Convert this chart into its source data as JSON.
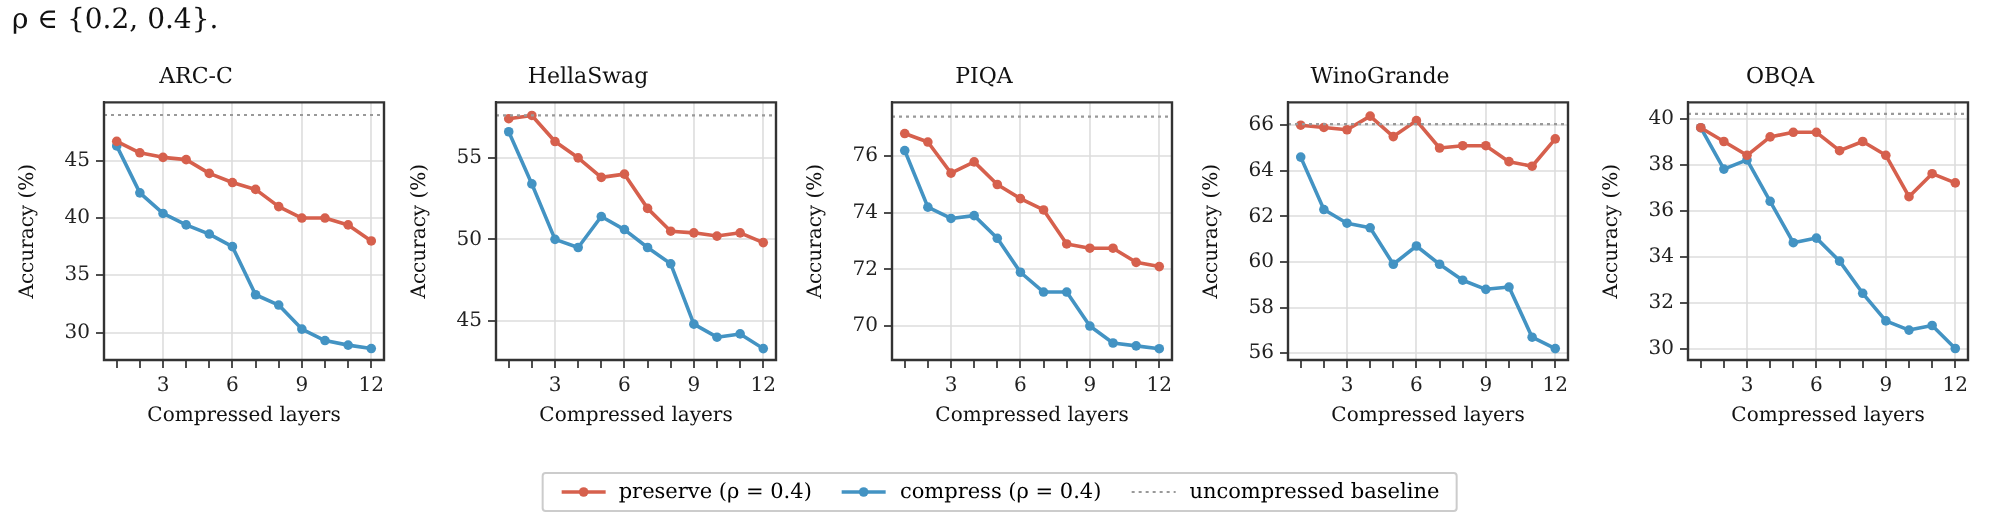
{
  "chart_data": [
    {
      "type": "line",
      "title": "ARC-C",
      "xlabel": "Compressed layers",
      "ylabel": "Accuracy (%)",
      "annotations": [
        "ρ ∈ {0.2, 0.4}."
      ],
      "x": [
        1,
        2,
        3,
        4,
        5,
        6,
        7,
        8,
        9,
        10,
        11,
        12
      ],
      "xlim": [
        0.45,
        12.55
      ],
      "xticks": [
        {
          "value": 1,
          "label": null
        },
        {
          "value": 2,
          "label": null
        },
        3,
        {
          "value": 4,
          "label": null
        },
        {
          "value": 5,
          "label": null
        },
        6,
        {
          "value": 7,
          "label": null
        },
        {
          "value": 8,
          "label": null
        },
        9,
        {
          "value": 10,
          "label": null
        },
        {
          "value": 11,
          "label": null
        },
        12
      ],
      "ylim": [
        27.6,
        50.1
      ],
      "yticks": [
        30,
        35,
        40,
        45
      ],
      "grid": true,
      "legend": "bottom",
      "marker": "circle",
      "line_style": "solid",
      "ref_lines": [
        {
          "axis": "y",
          "value": 49.0,
          "label": "uncompressed baseline",
          "color": "#999999",
          "line_style": "dotted"
        }
      ],
      "series": [
        {
          "name": "preserve (ρ = 0.4)",
          "color": "#d6604d",
          "values": [
            46.7,
            45.7,
            45.3,
            45.1,
            43.9,
            43.1,
            42.5,
            41.0,
            40.0,
            40.0,
            39.4,
            38.0
          ]
        },
        {
          "name": "compress (ρ = 0.4)",
          "color": "#4393c3",
          "values": [
            46.3,
            42.2,
            40.4,
            39.4,
            38.6,
            37.5,
            33.3,
            32.4,
            30.3,
            29.3,
            28.9,
            28.6
          ]
        }
      ]
    },
    {
      "type": "line",
      "title": "HellaSwag",
      "xlabel": "Compressed layers",
      "ylabel": "Accuracy (%)",
      "x": [
        1,
        2,
        3,
        4,
        5,
        6,
        7,
        8,
        9,
        10,
        11,
        12
      ],
      "xlim": [
        0.45,
        12.55
      ],
      "xticks": [
        {
          "value": 1,
          "label": null
        },
        {
          "value": 2,
          "label": null
        },
        3,
        {
          "value": 4,
          "label": null
        },
        {
          "value": 5,
          "label": null
        },
        6,
        {
          "value": 7,
          "label": null
        },
        {
          "value": 8,
          "label": null
        },
        9,
        {
          "value": 10,
          "label": null
        },
        {
          "value": 11,
          "label": null
        },
        12
      ],
      "ylim": [
        42.6,
        58.4
      ],
      "yticks": [
        45,
        50,
        55
      ],
      "grid": true,
      "marker": "circle",
      "line_style": "solid",
      "ref_lines": [
        {
          "axis": "y",
          "value": 57.6,
          "color": "#999999",
          "line_style": "dotted"
        }
      ],
      "series": [
        {
          "color": "#d6604d",
          "values": [
            57.4,
            57.6,
            56.0,
            55.0,
            53.8,
            54.0,
            51.9,
            50.5,
            50.4,
            50.2,
            50.4,
            49.8
          ]
        },
        {
          "color": "#4393c3",
          "values": [
            56.6,
            53.4,
            50.0,
            49.5,
            51.4,
            50.6,
            49.5,
            48.5,
            44.8,
            44.0,
            44.2,
            43.3
          ]
        }
      ]
    },
    {
      "type": "line",
      "title": "PIQA",
      "xlabel": "Compressed layers",
      "ylabel": "Accuracy (%)",
      "x": [
        1,
        2,
        3,
        4,
        5,
        6,
        7,
        8,
        9,
        10,
        11,
        12
      ],
      "xlim": [
        0.45,
        12.55
      ],
      "xticks": [
        {
          "value": 1,
          "label": null
        },
        {
          "value": 2,
          "label": null
        },
        3,
        {
          "value": 4,
          "label": null
        },
        {
          "value": 5,
          "label": null
        },
        6,
        {
          "value": 7,
          "label": null
        },
        {
          "value": 8,
          "label": null
        },
        9,
        {
          "value": 10,
          "label": null
        },
        {
          "value": 11,
          "label": null
        },
        12
      ],
      "ylim": [
        68.8,
        77.9
      ],
      "yticks": [
        70,
        72,
        74,
        76
      ],
      "grid": true,
      "marker": "circle",
      "line_style": "solid",
      "ref_lines": [
        {
          "axis": "y",
          "value": 77.4,
          "color": "#999999",
          "line_style": "dotted"
        }
      ],
      "series": [
        {
          "color": "#d6604d",
          "values": [
            76.8,
            76.5,
            75.4,
            75.8,
            75.0,
            74.5,
            74.1,
            72.9,
            72.75,
            72.75,
            72.25,
            72.1
          ]
        },
        {
          "color": "#4393c3",
          "values": [
            76.2,
            74.2,
            73.8,
            73.9,
            73.1,
            71.9,
            71.2,
            71.2,
            70.0,
            69.4,
            69.3,
            69.2
          ]
        }
      ]
    },
    {
      "type": "line",
      "title": "WinoGrande",
      "xlabel": "Compressed layers",
      "ylabel": "Accuracy (%)",
      "x": [
        1,
        2,
        3,
        4,
        5,
        6,
        7,
        8,
        9,
        10,
        11,
        12
      ],
      "xlim": [
        0.45,
        12.55
      ],
      "xticks": [
        {
          "value": 1,
          "label": null
        },
        {
          "value": 2,
          "label": null
        },
        3,
        {
          "value": 4,
          "label": null
        },
        {
          "value": 5,
          "label": null
        },
        6,
        {
          "value": 7,
          "label": null
        },
        {
          "value": 8,
          "label": null
        },
        9,
        {
          "value": 10,
          "label": null
        },
        {
          "value": 11,
          "label": null
        },
        12
      ],
      "ylim": [
        55.7,
        67.0
      ],
      "yticks": [
        56,
        58,
        60,
        62,
        64,
        66
      ],
      "grid": true,
      "marker": "circle",
      "line_style": "solid",
      "ref_lines": [
        {
          "axis": "y",
          "value": 66.05,
          "color": "#999999",
          "line_style": "dotted"
        }
      ],
      "series": [
        {
          "color": "#d6604d",
          "values": [
            66.0,
            65.9,
            65.8,
            66.4,
            65.5,
            66.2,
            65.0,
            65.1,
            65.1,
            64.4,
            64.2,
            65.4
          ]
        },
        {
          "color": "#4393c3",
          "values": [
            64.6,
            62.3,
            61.7,
            61.5,
            59.9,
            60.7,
            59.9,
            59.2,
            58.8,
            58.9,
            56.7,
            56.2
          ]
        }
      ]
    },
    {
      "type": "line",
      "title": "OBQA",
      "xlabel": "Compressed layers",
      "ylabel": "Accuracy (%)",
      "x": [
        1,
        2,
        3,
        4,
        5,
        6,
        7,
        8,
        9,
        10,
        11,
        12
      ],
      "xlim": [
        0.45,
        12.55
      ],
      "xticks": [
        {
          "value": 1,
          "label": null
        },
        {
          "value": 2,
          "label": null
        },
        3,
        {
          "value": 4,
          "label": null
        },
        {
          "value": 5,
          "label": null
        },
        6,
        {
          "value": 7,
          "label": null
        },
        {
          "value": 8,
          "label": null
        },
        9,
        {
          "value": 10,
          "label": null
        },
        {
          "value": 11,
          "label": null
        },
        12
      ],
      "ylim": [
        29.5,
        40.7
      ],
      "yticks": [
        30,
        32,
        34,
        36,
        38,
        40
      ],
      "grid": true,
      "marker": "circle",
      "line_style": "solid",
      "ref_lines": [
        {
          "axis": "y",
          "value": 40.2,
          "color": "#999999",
          "line_style": "dotted"
        }
      ],
      "series": [
        {
          "color": "#d6604d",
          "values": [
            39.6,
            39.0,
            38.4,
            39.2,
            39.4,
            39.4,
            38.6,
            39.0,
            38.4,
            36.6,
            37.6,
            37.2
          ]
        },
        {
          "color": "#4393c3",
          "values": [
            39.6,
            37.8,
            38.2,
            36.4,
            34.6,
            34.8,
            33.8,
            32.4,
            31.2,
            30.8,
            31.0,
            30.0
          ]
        }
      ]
    }
  ]
}
